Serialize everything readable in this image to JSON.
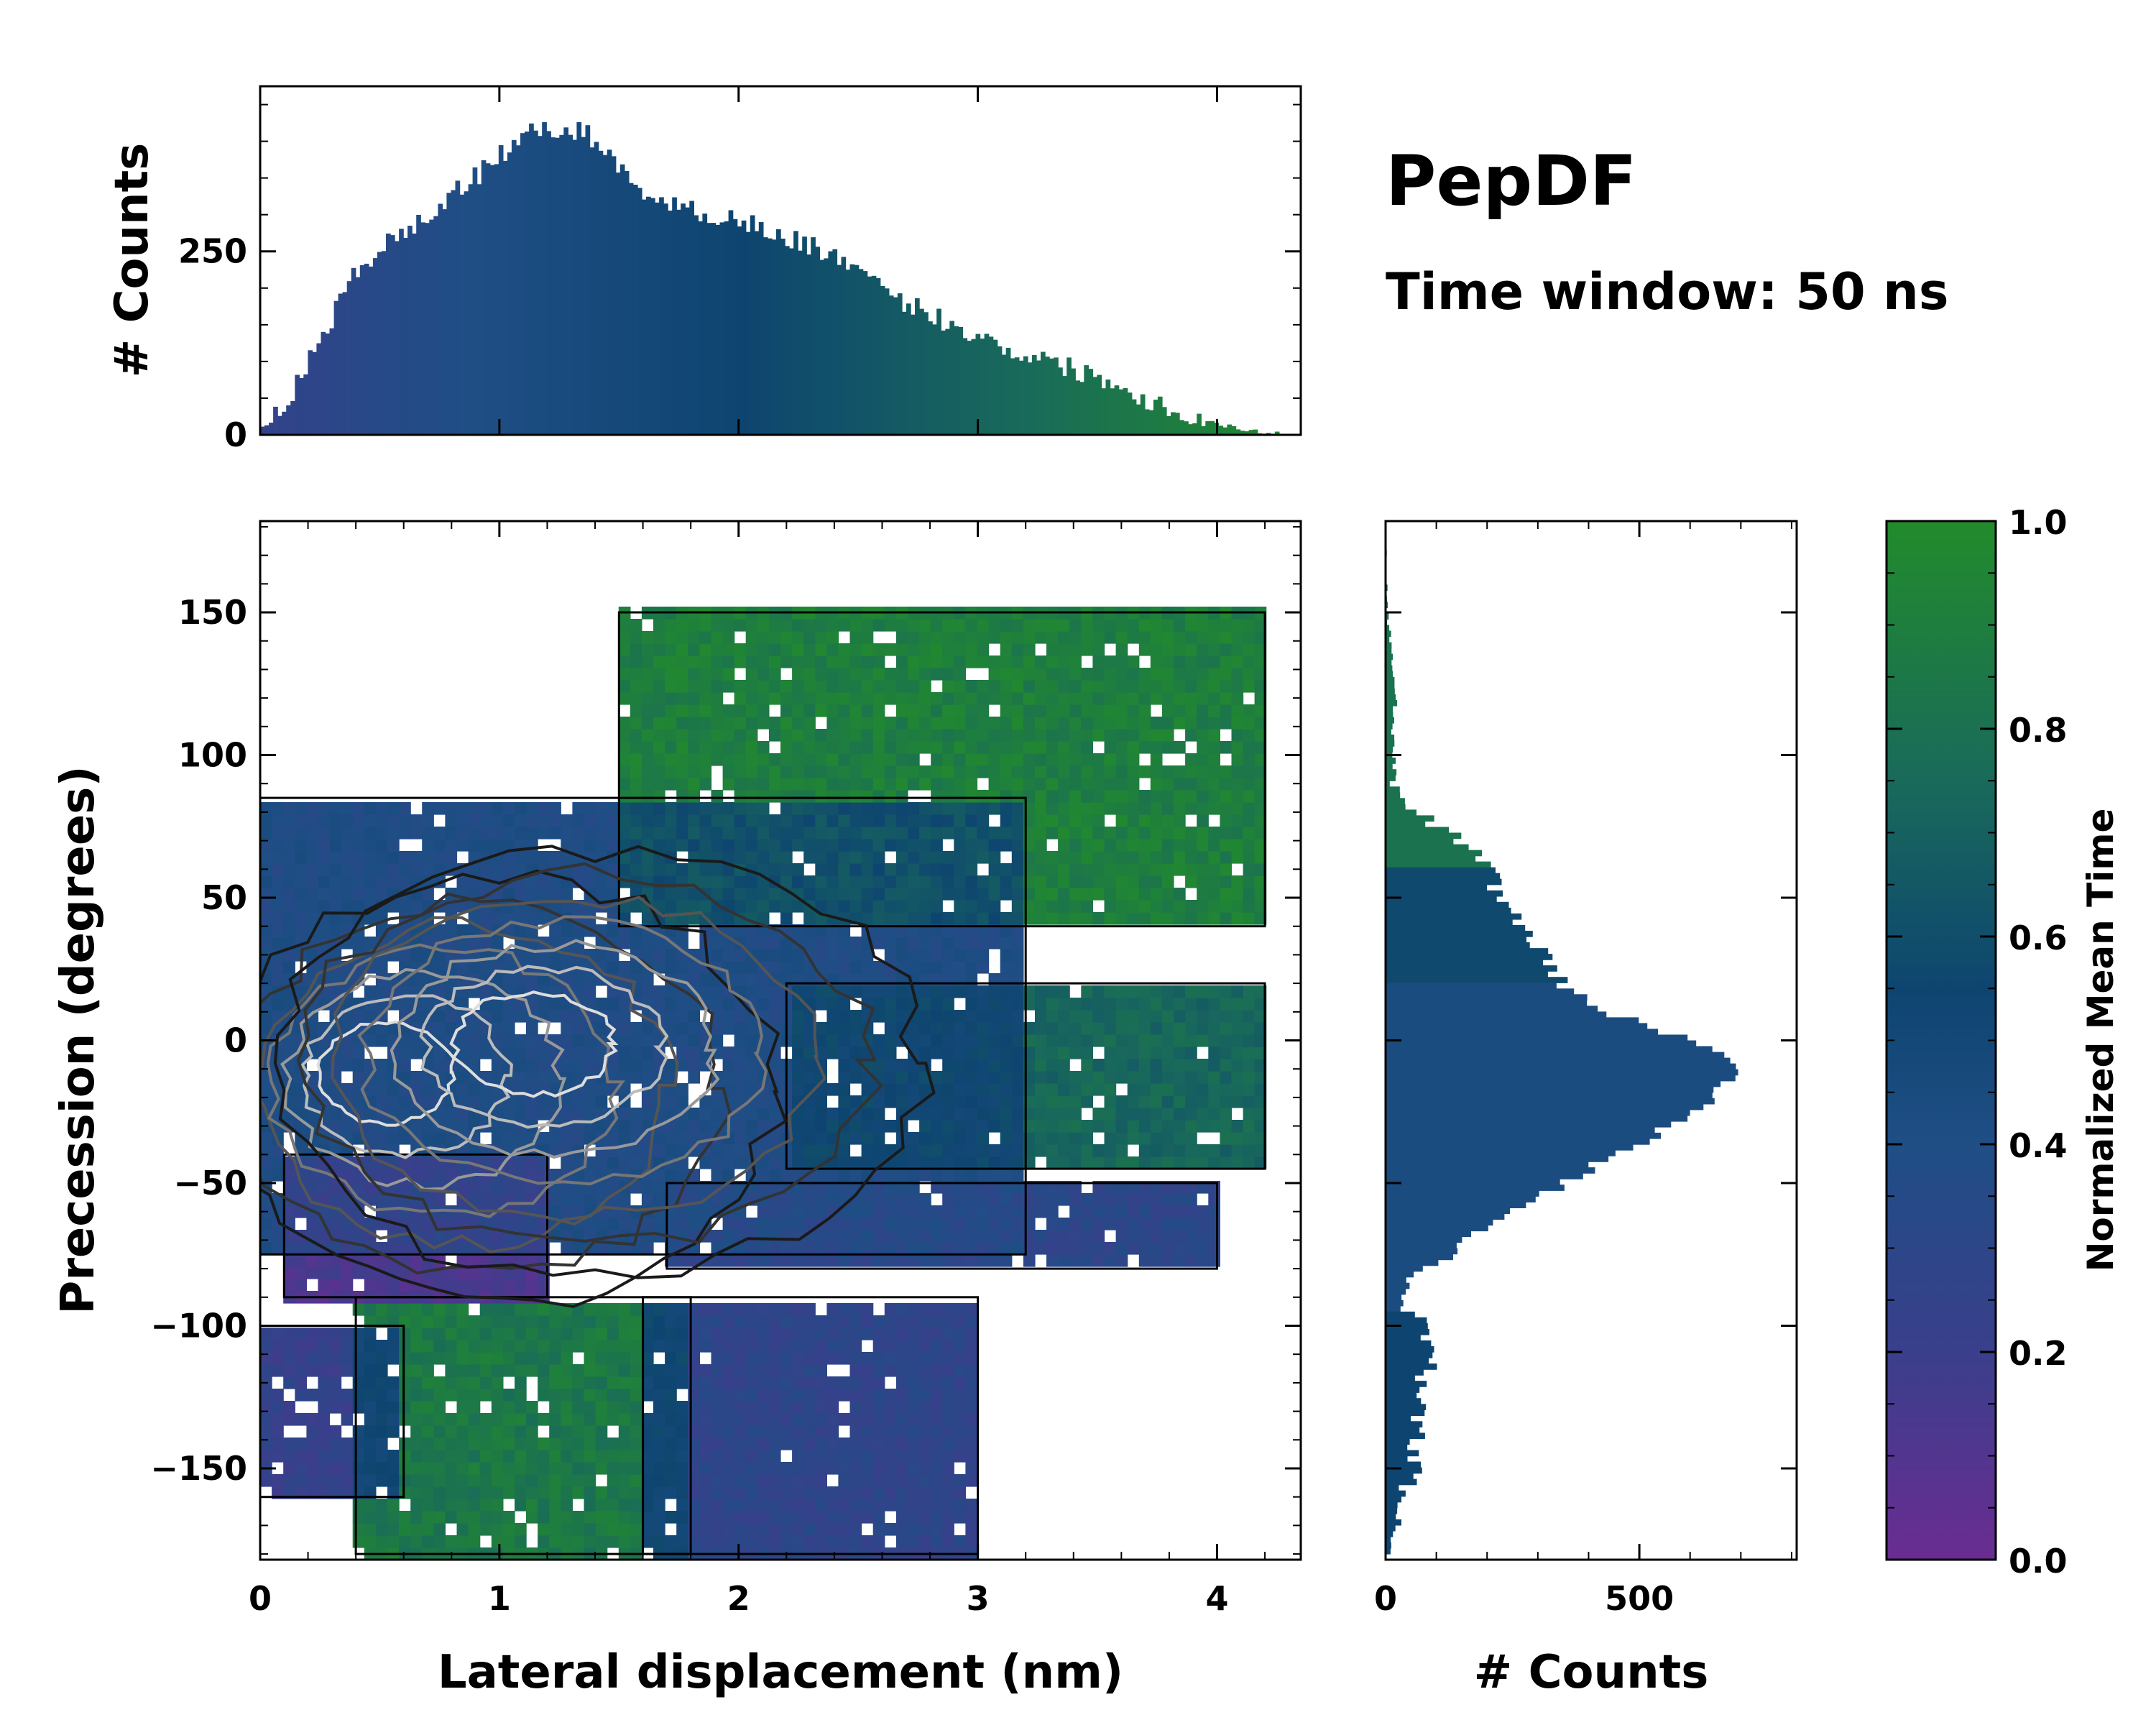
{
  "figure": {
    "title": "PepDF",
    "subtitle": "Time window: 50 ns"
  },
  "chart_data": [
    {
      "type": "heatmap",
      "name": "joint-2d-histogram",
      "xlabel": "Lateral displacement (nm)",
      "ylabel": "Precession (degrees)",
      "xlim": [
        0,
        4.35
      ],
      "ylim": [
        -182,
        182
      ],
      "xticks": [
        0,
        1,
        2,
        3,
        4
      ],
      "yticks": [
        150,
        100,
        50,
        0,
        -50,
        -100,
        -150
      ],
      "xtick_labels": [
        "0",
        "1",
        "2",
        "3",
        "4"
      ],
      "ytick_labels": [
        "150",
        "100",
        "50",
        "0",
        "−50",
        "−100",
        "−150"
      ],
      "color_meaning": "Normalized Mean Time",
      "regions": [
        {
          "name": "upper-green-lobe",
          "x": [
            1.5,
            4.2
          ],
          "y": [
            40,
            150
          ],
          "mean_time": 0.92
        },
        {
          "name": "central-blue-core",
          "x": [
            0.0,
            3.2
          ],
          "y": [
            -75,
            85
          ],
          "mean_time": 0.4
        },
        {
          "name": "left-purple-band",
          "x": [
            0.1,
            1.2
          ],
          "y": [
            -90,
            -40
          ],
          "mean_time": 0.12
        },
        {
          "name": "right-green-band",
          "x": [
            2.2,
            4.2
          ],
          "y": [
            -45,
            20
          ],
          "mean_time": 0.78
        },
        {
          "name": "lower-right-blue-lobe",
          "x": [
            1.7,
            4.0
          ],
          "y": [
            -80,
            -50
          ],
          "mean_time": 0.3
        },
        {
          "name": "lower-green-lobe",
          "x": [
            0.4,
            1.8
          ],
          "y": [
            -180,
            -90
          ],
          "mean_time": 0.88
        },
        {
          "name": "lower-purple-lobe",
          "x": [
            1.6,
            3.0
          ],
          "y": [
            -180,
            -90
          ],
          "mean_time": 0.28
        },
        {
          "name": "far-left-purple-patch",
          "x": [
            0.0,
            0.6
          ],
          "y": [
            -160,
            -100
          ],
          "mean_time": 0.24
        }
      ],
      "density_peaks": [
        {
          "x": 0.45,
          "y": -10,
          "level": 1.0
        },
        {
          "x": 1.1,
          "y": 0,
          "level": 0.95
        }
      ]
    },
    {
      "type": "bar",
      "name": "top-marginal-histogram",
      "orientation": "vertical",
      "ylabel": "# Counts",
      "xlim": [
        0,
        4.35
      ],
      "ylim": [
        0,
        475
      ],
      "yticks": [
        0,
        250
      ],
      "x": [
        0.0,
        0.1,
        0.2,
        0.3,
        0.4,
        0.5,
        0.6,
        0.7,
        0.8,
        0.9,
        1.0,
        1.1,
        1.2,
        1.3,
        1.4,
        1.5,
        1.6,
        1.7,
        1.8,
        1.9,
        2.0,
        2.1,
        2.2,
        2.3,
        2.4,
        2.5,
        2.6,
        2.7,
        2.8,
        2.9,
        3.0,
        3.1,
        3.2,
        3.3,
        3.4,
        3.5,
        3.6,
        3.7,
        3.8,
        3.9,
        4.0,
        4.1,
        4.2,
        4.3,
        4.35
      ],
      "values": [
        5,
        40,
        95,
        160,
        220,
        255,
        275,
        295,
        330,
        350,
        380,
        405,
        420,
        415,
        405,
        360,
        335,
        315,
        305,
        300,
        295,
        280,
        265,
        260,
        245,
        220,
        195,
        180,
        165,
        150,
        135,
        120,
        110,
        100,
        90,
        80,
        65,
        50,
        35,
        25,
        15,
        8,
        3,
        0,
        0
      ]
    },
    {
      "type": "bar",
      "name": "right-marginal-histogram",
      "orientation": "horizontal",
      "xlabel": "# Counts",
      "xlim": [
        0,
        810
      ],
      "xticks": [
        0,
        500
      ],
      "ylim": [
        -182,
        182
      ],
      "y": [
        -180,
        -170,
        -160,
        -150,
        -140,
        -130,
        -120,
        -110,
        -100,
        -90,
        -80,
        -70,
        -60,
        -50,
        -40,
        -30,
        -20,
        -10,
        0,
        10,
        20,
        30,
        40,
        50,
        60,
        70,
        80,
        90,
        100,
        110,
        120,
        130,
        140,
        150,
        160,
        170,
        180
      ],
      "values": [
        5,
        20,
        35,
        55,
        60,
        65,
        70,
        95,
        70,
        30,
        80,
        160,
        260,
        350,
        450,
        560,
        640,
        720,
        600,
        430,
        350,
        310,
        270,
        230,
        200,
        150,
        60,
        20,
        15,
        15,
        20,
        15,
        10,
        5,
        0,
        0,
        0
      ]
    },
    {
      "type": "colorbar",
      "name": "mean-time-colorbar",
      "label": "Normalized Mean Time",
      "range": [
        0.0,
        1.0
      ],
      "ticks": [
        0.0,
        0.2,
        0.4,
        0.6,
        0.8,
        1.0
      ],
      "tick_labels": [
        "0.0",
        "0.2",
        "0.4",
        "0.6",
        "0.8",
        "1.0"
      ],
      "colors": [
        "#6a2c91",
        "#3a3f8c",
        "#1f4e85",
        "#0e4570",
        "#196a5a",
        "#228b2c"
      ]
    }
  ]
}
